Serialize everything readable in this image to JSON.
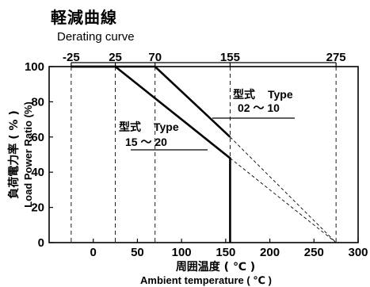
{
  "header": {
    "title_jp": "軽減曲線",
    "title_en": "Derating curve"
  },
  "chart_data": {
    "type": "line",
    "title": "軽減曲線",
    "subtitle": "Derating curve",
    "xlabel_jp": "周囲温度 ( ℃ )",
    "xlabel": "Ambient temperature ( ℃ )",
    "ylabel_jp": "負荷電力率 ( % )",
    "ylabel": "Load Power Ratio (%)",
    "xlim": [
      -50,
      300
    ],
    "ylim": [
      0,
      100
    ],
    "x_ticks": [
      0,
      50,
      100,
      150,
      200,
      250,
      300
    ],
    "y_ticks": [
      0,
      20,
      40,
      60,
      80,
      100
    ],
    "top_ticks": [
      -25,
      25,
      70,
      155,
      275
    ],
    "grid": "dashed vertical lines at top tick temperatures",
    "series": [
      {
        "points": [
          [
            -25,
            100
          ],
          [
            70,
            100
          ],
          [
            155,
            60
          ]
        ],
        "extension": [
          [
            155,
            60
          ],
          [
            275,
            0
          ]
        ],
        "label_jp": "型式",
        "label_en": "Type",
        "label_range": "02 ～ 10"
      },
      {
        "points": [
          [
            -25,
            100
          ],
          [
            25,
            100
          ],
          [
            155,
            48
          ],
          [
            155,
            0
          ]
        ],
        "extension": [
          [
            155,
            48
          ],
          [
            275,
            0
          ]
        ],
        "label_jp": "型式",
        "label_en": "Type",
        "label_range": "15 ～ 20"
      }
    ]
  }
}
